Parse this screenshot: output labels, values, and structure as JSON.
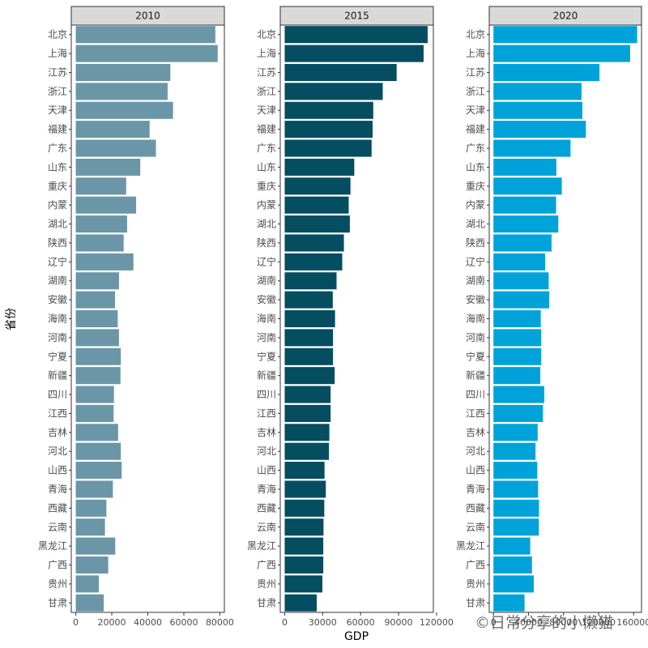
{
  "chart_data": {
    "type": "bar",
    "orientation": "horizontal",
    "xlabel": "GDP",
    "ylabel": "省份",
    "categories": [
      "北京",
      "上海",
      "江苏",
      "浙江",
      "天津",
      "福建",
      "广东",
      "山东",
      "重庆",
      "内蒙",
      "湖北",
      "陕西",
      "辽宁",
      "湖南",
      "安徽",
      "海南",
      "河南",
      "宁夏",
      "新疆",
      "四川",
      "江西",
      "吉林",
      "河北",
      "山西",
      "青海",
      "西藏",
      "云南",
      "黑龙江",
      "广西",
      "贵州",
      "甘肃"
    ],
    "panels": [
      {
        "title": "2010",
        "color": "#6b96a7",
        "xlim": [
          -2500,
          82500
        ],
        "xticks": [
          0,
          20000,
          40000,
          60000,
          80000
        ],
        "tick_labels": [
          "0",
          "20000",
          "40000",
          "60000",
          "80000"
        ],
        "values": [
          77500,
          78800,
          52500,
          51000,
          54000,
          41000,
          44500,
          35800,
          28000,
          33500,
          28500,
          26600,
          32000,
          24000,
          21800,
          23300,
          24000,
          25000,
          24800,
          21200,
          21000,
          23500,
          25000,
          25500,
          20600,
          17000,
          16200,
          21900,
          18000,
          12800,
          15500
        ]
      },
      {
        "title": "2015",
        "color": "#054d61",
        "xlim": [
          -3500,
          117500
        ],
        "xticks": [
          0,
          30000,
          60000,
          90000,
          120000
        ],
        "tick_labels": [
          "0",
          "30000",
          "60000",
          "90000",
          "120000"
        ],
        "values": [
          113000,
          109800,
          88500,
          77500,
          70000,
          69500,
          68700,
          55000,
          52000,
          50600,
          51500,
          46800,
          45500,
          41000,
          38000,
          39800,
          38200,
          38200,
          39500,
          36300,
          36300,
          35300,
          35000,
          31500,
          32500,
          31300,
          30700,
          30500,
          30500,
          29800,
          25300
        ]
      },
      {
        "title": "2020",
        "color": "#00a3d9",
        "xlim": [
          -4800,
          169000
        ],
        "xticks": [
          0,
          40000,
          80000,
          120000,
          160000
        ],
        "tick_labels": [
          "0",
          "40000",
          "80000",
          "120000",
          "160000"
        ],
        "values": [
          164000,
          156000,
          121000,
          100500,
          101500,
          105500,
          88000,
          71800,
          78000,
          71500,
          74000,
          66300,
          59000,
          63000,
          63700,
          54000,
          54500,
          54500,
          53500,
          58000,
          56500,
          50500,
          48000,
          50000,
          51000,
          52000,
          51800,
          42000,
          44000,
          46000,
          35500
        ]
      }
    ]
  },
  "watermark": "©日常分享的小懒猫"
}
